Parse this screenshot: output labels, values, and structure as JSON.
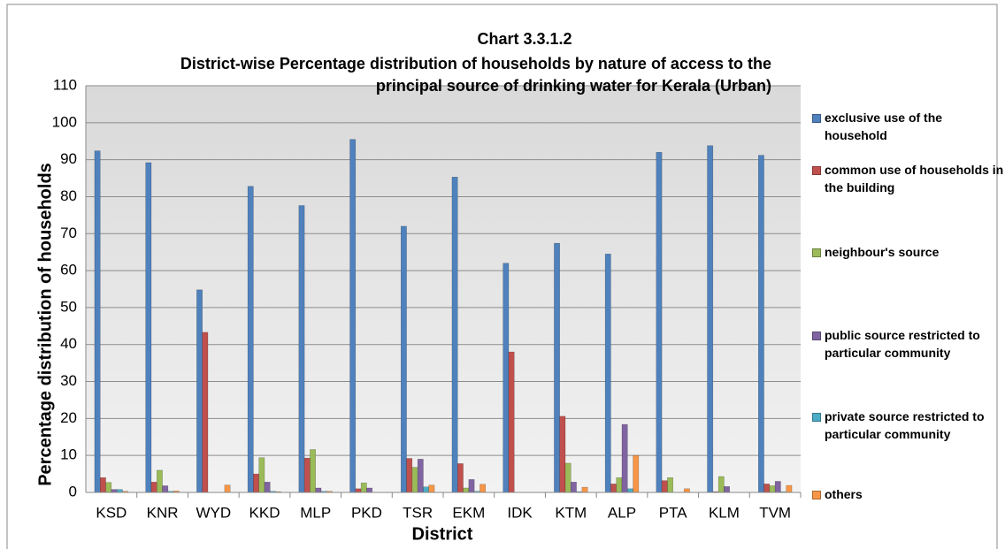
{
  "chart_data": {
    "type": "bar",
    "title": "Chart 3.3.1.2",
    "subtitle": "District-wise Percentage distribution of households by nature of access to the principal source of drinking water for Kerala (Urban)",
    "x_label": "District",
    "y_label": "Percentage distribution of households",
    "categories": [
      "KSD",
      "KNR",
      "WYD",
      "KKD",
      "MLP",
      "PKD",
      "TSR",
      "EKM",
      "IDK",
      "KTM",
      "ALP",
      "PTA",
      "KLM",
      "TVM"
    ],
    "series": [
      {
        "name": "exclusive use of the household",
        "color": "#4f81bd",
        "values": [
          92.4,
          89.2,
          54.8,
          82.8,
          77.6,
          95.5,
          72,
          85.3,
          62,
          67.4,
          64.5,
          92,
          93.8,
          91.2
        ]
      },
      {
        "name": "common use of households in the building",
        "color": "#c0504d",
        "values": [
          4,
          2.8,
          43.3,
          5,
          9.3,
          1,
          9.2,
          7.8,
          38,
          20.6,
          2.3,
          3.2,
          0.2,
          2.3
        ]
      },
      {
        "name": "neighbour's source",
        "color": "#9bbb59",
        "values": [
          2.7,
          6,
          0,
          9.4,
          11.6,
          2.6,
          6.8,
          1.2,
          0,
          7.9,
          4,
          4,
          4.3,
          1.8
        ]
      },
      {
        "name": "public source restricted to particular community",
        "color": "#8064a2",
        "values": [
          0.8,
          1.8,
          0,
          2.8,
          1.2,
          1.2,
          9,
          3.5,
          0,
          2.8,
          18.4,
          0,
          1.6,
          3
        ]
      },
      {
        "name": "private source restricted to particular community",
        "color": "#4bacc6",
        "values": [
          0.8,
          0.3,
          0,
          0.3,
          0.3,
          0,
          1.5,
          0.3,
          0,
          0.2,
          1,
          0,
          0,
          0.2
        ]
      },
      {
        "name": "others",
        "color": "#f79646",
        "values": [
          0.3,
          0.4,
          2,
          0.2,
          0.3,
          0,
          2,
          2.2,
          0,
          1.4,
          10,
          1,
          0,
          1.9
        ]
      }
    ],
    "ylim": [
      0,
      110
    ],
    "yticks": [
      0,
      10,
      20,
      30,
      40,
      50,
      60,
      70,
      80,
      90,
      100,
      110
    ],
    "grid": true,
    "legend": "right"
  }
}
